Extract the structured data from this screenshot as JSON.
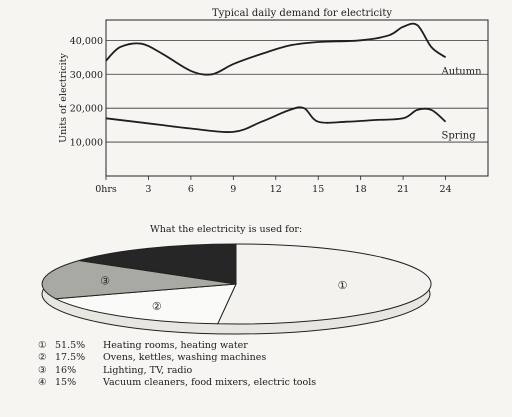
{
  "chart_data": [
    {
      "type": "line",
      "title": "Typical daily demand for electricity",
      "xlabel": "",
      "ylabel": "Units of electricity",
      "x_ticks": [
        "0hrs",
        "3",
        "6",
        "9",
        "12",
        "15",
        "18",
        "21",
        "24"
      ],
      "y_ticks": [
        "10,000",
        "20,000",
        "30,000",
        "40,000"
      ],
      "xlim": [
        0,
        27
      ],
      "ylim": [
        0,
        46000
      ],
      "grid": "horizontal",
      "series": [
        {
          "name": "Autumn",
          "x": [
            0,
            1,
            2.5,
            4,
            6,
            7.5,
            9,
            11,
            13,
            15,
            18,
            20,
            21,
            22,
            23,
            24
          ],
          "y": [
            34000,
            38000,
            39000,
            36000,
            31000,
            30000,
            33000,
            36000,
            38500,
            39500,
            40000,
            41500,
            44000,
            44500,
            38000,
            35000
          ]
        },
        {
          "name": "Spring",
          "x": [
            0,
            2,
            4,
            6,
            9,
            11,
            13,
            14,
            15,
            17,
            19,
            21,
            22,
            23,
            24
          ],
          "y": [
            17000,
            16000,
            15000,
            14000,
            13000,
            16000,
            19500,
            20000,
            16000,
            16000,
            16500,
            17000,
            19500,
            19500,
            16000
          ]
        }
      ]
    },
    {
      "type": "pie",
      "title": "What the electricity is used for:",
      "slices": [
        {
          "marker": "①",
          "percent_label": "51.5%",
          "value": 51.5,
          "label": "Heating rooms, heating water",
          "color": "#f3f2ee"
        },
        {
          "marker": "②",
          "percent_label": "17.5%",
          "value": 17.5,
          "label": "Ovens, kettles, washing machines",
          "color": "#fafaf8"
        },
        {
          "marker": "③",
          "percent_label": "16%",
          "value": 16,
          "label": "Lighting, TV, radio",
          "color": "#a9a9a4"
        },
        {
          "marker": "④",
          "percent_label": "15%",
          "value": 15,
          "label": "Vacuum cleaners, food mixers, electric tools",
          "color": "#262626"
        }
      ]
    }
  ]
}
